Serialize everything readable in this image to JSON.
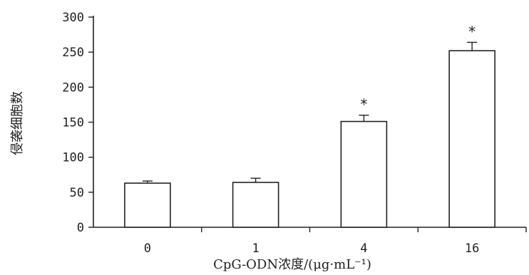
{
  "chart_data": {
    "type": "bar",
    "categories": [
      "0",
      "1",
      "4",
      "16"
    ],
    "values": [
      63,
      64,
      151,
      252
    ],
    "error": [
      3,
      6,
      9,
      12
    ],
    "significance": [
      "",
      "",
      "*",
      "*"
    ],
    "xlabel": "CpG-ODN浓度/(μg·mL⁻¹)",
    "ylabel": "侵袭细胞数",
    "ylim": [
      0,
      300
    ],
    "yticks": [
      0,
      50,
      100,
      150,
      200,
      250,
      300
    ],
    "grid": false,
    "bar_fill": "#ffffff",
    "stroke_color": "#222222"
  }
}
